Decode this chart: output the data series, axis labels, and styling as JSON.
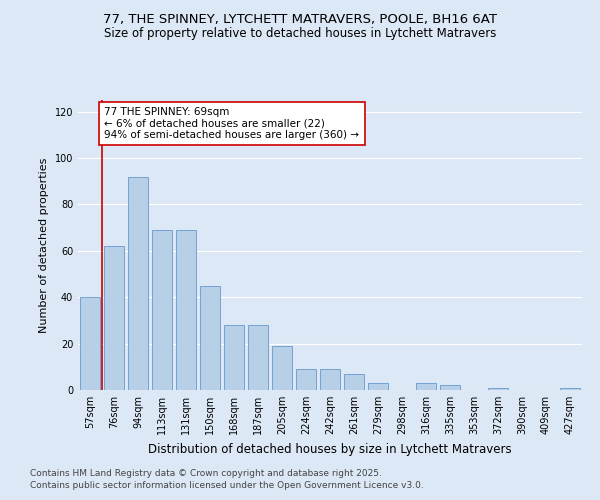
{
  "title": "77, THE SPINNEY, LYTCHETT MATRAVERS, POOLE, BH16 6AT",
  "subtitle": "Size of property relative to detached houses in Lytchett Matravers",
  "xlabel": "Distribution of detached houses by size in Lytchett Matravers",
  "ylabel": "Number of detached properties",
  "footnote1": "Contains HM Land Registry data © Crown copyright and database right 2025.",
  "footnote2": "Contains public sector information licensed under the Open Government Licence v3.0.",
  "categories": [
    "57sqm",
    "76sqm",
    "94sqm",
    "113sqm",
    "131sqm",
    "150sqm",
    "168sqm",
    "187sqm",
    "205sqm",
    "224sqm",
    "242sqm",
    "261sqm",
    "279sqm",
    "298sqm",
    "316sqm",
    "335sqm",
    "353sqm",
    "372sqm",
    "390sqm",
    "409sqm",
    "427sqm"
  ],
  "values": [
    40,
    62,
    92,
    69,
    69,
    45,
    28,
    28,
    19,
    9,
    9,
    7,
    3,
    0,
    3,
    2,
    0,
    1,
    0,
    0,
    1
  ],
  "bar_color": "#b8cfe8",
  "bar_edge_color": "#6699cc",
  "background_color": "#dce8f5",
  "grid_color": "#ffffff",
  "annotation_box_text": "77 THE SPINNEY: 69sqm\n← 6% of detached houses are smaller (22)\n94% of semi-detached houses are larger (360) →",
  "annotation_box_color": "#ffffff",
  "annotation_box_edge_color": "#cc0000",
  "vline_color": "#cc0000",
  "ylim": [
    0,
    125
  ],
  "yticks": [
    0,
    20,
    40,
    60,
    80,
    100,
    120
  ],
  "title_fontsize": 9.5,
  "subtitle_fontsize": 8.5,
  "xlabel_fontsize": 8.5,
  "ylabel_fontsize": 8,
  "tick_fontsize": 7,
  "annotation_fontsize": 7.5,
  "footnote_fontsize": 6.5
}
